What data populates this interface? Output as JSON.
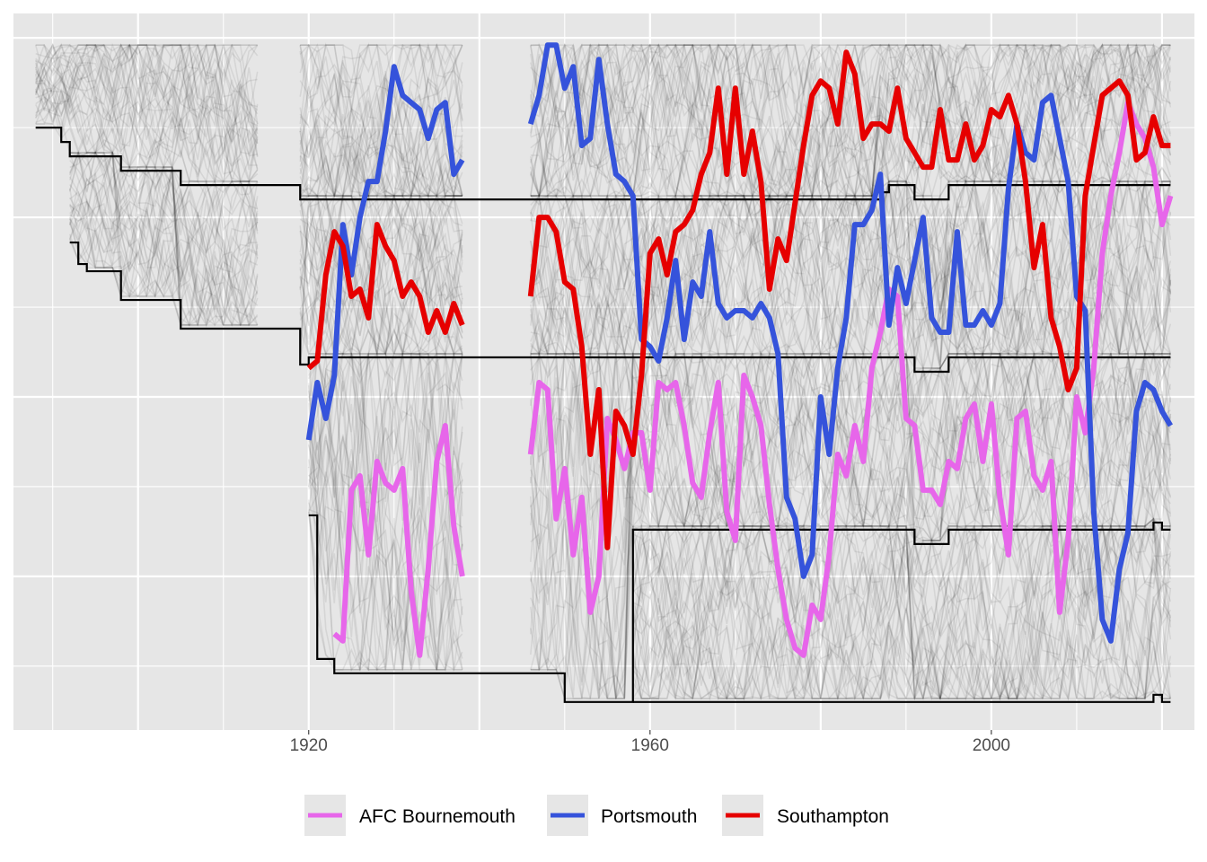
{
  "chart_data": {
    "type": "line",
    "title": "",
    "xlabel": "",
    "ylabel": "",
    "xlim": [
      1885.4,
      2023.8
    ],
    "ylim": [
      96.4,
      -3.4
    ],
    "y_reversed": true,
    "y_tick_labels_shown": false,
    "grid": true,
    "x_ticks": [
      1920,
      1960,
      2000
    ],
    "x_tick_labels": [
      "1920",
      "1960",
      "2000"
    ],
    "legend_position": "bottom",
    "background_lines": "all other clubs, faint grey",
    "series": [
      {
        "name": "AFC Bournemouth",
        "color": "#E766EA",
        "segments": [
          {
            "start": 1923,
            "values": [
              83,
              84,
              63,
              61,
              72,
              59,
              62,
              63,
              60,
              77,
              86,
              74,
              59,
              54,
              68,
              75
            ]
          },
          {
            "start": 1946,
            "values": [
              58,
              48,
              49,
              67,
              60,
              72,
              64,
              80,
              75,
              53,
              56,
              60,
              55,
              55,
              63,
              48,
              49,
              48,
              54,
              62,
              64,
              55,
              48,
              66,
              70,
              47,
              50,
              54,
              65,
              74,
              81,
              85,
              86,
              79,
              81,
              72,
              58,
              61,
              54,
              59,
              46,
              41,
              35,
              36,
              53,
              54,
              63,
              63,
              65,
              59,
              60,
              53,
              51,
              59,
              51,
              64,
              72,
              53,
              52,
              61,
              63,
              59,
              80,
              70,
              50,
              55,
              46,
              30,
              22,
              16,
              9,
              12,
              14,
              18,
              26,
              22
            ]
          }
        ]
      },
      {
        "name": "Portsmouth",
        "color": "#3553DB",
        "segments": [
          {
            "start": 1920,
            "values": [
              56,
              48,
              53,
              47,
              26,
              33,
              25,
              20,
              20,
              13,
              4,
              8,
              9,
              10,
              14,
              10,
              9,
              19,
              17
            ]
          },
          {
            "start": 1946,
            "values": [
              12,
              8,
              1,
              1,
              7,
              4,
              15,
              14,
              3,
              12,
              19,
              20,
              22,
              42,
              43,
              45,
              39,
              31,
              42,
              34,
              36,
              27,
              37,
              39,
              38,
              38,
              39,
              37,
              39,
              44,
              64,
              67,
              75,
              72,
              50,
              58,
              46,
              39,
              26,
              26,
              24,
              19,
              40,
              32,
              37,
              31,
              25,
              39,
              41,
              41,
              27,
              40,
              40,
              38,
              40,
              37,
              21,
              12,
              16,
              17,
              9,
              8,
              14,
              20,
              36,
              38,
              66,
              81,
              84,
              74,
              69,
              52,
              48,
              49,
              52,
              54
            ]
          }
        ]
      },
      {
        "name": "Southampton",
        "color": "#E60000",
        "segments": [
          {
            "start": 1920,
            "values": [
              46,
              45,
              33,
              27,
              29,
              36,
              35,
              39,
              26,
              29,
              31,
              36,
              34,
              36,
              41,
              38,
              41,
              37,
              40
            ]
          },
          {
            "start": 1946,
            "values": [
              36,
              25,
              25,
              27,
              34,
              35,
              43,
              58,
              49,
              71,
              52,
              54,
              58,
              47,
              30,
              28,
              33,
              27,
              26,
              24,
              19,
              16,
              7,
              19,
              7,
              19,
              13,
              20,
              35,
              28,
              31,
              23,
              15,
              8,
              6,
              7,
              12,
              2,
              5,
              14,
              12,
              12,
              13,
              7,
              14,
              16,
              18,
              18,
              10,
              17,
              17,
              12,
              17,
              15,
              10,
              11,
              8,
              12,
              20,
              32,
              26,
              39,
              43,
              49,
              46,
              22,
              15,
              8,
              7,
              6,
              8,
              17,
              16,
              11,
              15,
              15
            ]
          }
        ]
      }
    ],
    "division_boundaries": {
      "color": "#000000",
      "end": 2021,
      "lines": [
        {
          "steps": [
            [
              1888,
              12
            ],
            [
              1891,
              14
            ],
            [
              1892,
              16
            ],
            [
              1898,
              18
            ],
            [
              1905,
              20
            ],
            [
              1919,
              22
            ],
            [
              1987,
              21
            ],
            [
              1988,
              20
            ],
            [
              1991,
              22
            ],
            [
              1995,
              20
            ]
          ]
        },
        {
          "steps": [
            [
              1892,
              28
            ],
            [
              1893,
              31
            ],
            [
              1894,
              32
            ],
            [
              1898,
              36
            ],
            [
              1905,
              40
            ],
            [
              1919,
              45
            ],
            [
              1920,
              44
            ],
            [
              1991,
              46
            ],
            [
              1995,
              44
            ]
          ]
        },
        {
          "steps": [
            [
              1920,
              66
            ],
            [
              1921,
              86
            ],
            [
              1923,
              88
            ],
            [
              1950,
              92
            ],
            [
              1958,
              68
            ],
            [
              1991,
              70
            ],
            [
              1995,
              68
            ],
            [
              2019,
              67
            ],
            [
              2020,
              68
            ]
          ]
        },
        {
          "steps": [
            [
              1958,
              92
            ],
            [
              2019,
              91
            ],
            [
              2020,
              92
            ]
          ]
        }
      ]
    }
  },
  "legend": {
    "items": [
      "AFC Bournemouth",
      "Portsmouth",
      "Southampton"
    ]
  },
  "colors": {
    "panel": "#EBEBEB",
    "grid": "#FFFFFF"
  }
}
